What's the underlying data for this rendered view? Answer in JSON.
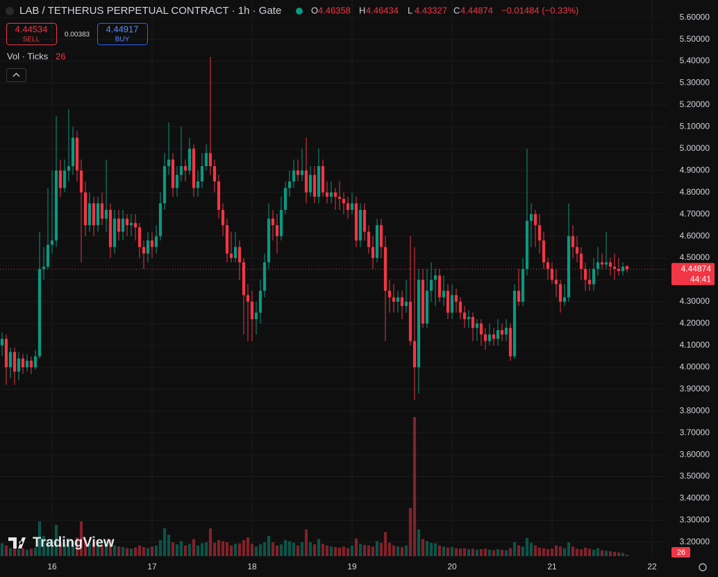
{
  "chart_data": {
    "type": "candlestick",
    "title": "LAB / TETHERUS PERPETUAL CONTRACT · 1h · Gate",
    "legend_letters": [
      "O",
      "H",
      "L",
      "C"
    ],
    "quote": [
      4.46358,
      4.46434,
      4.43327,
      4.44874
    ],
    "change_label": "−0.01484 (−0.33%)",
    "sell": {
      "price": 4.44534,
      "label": "SELL"
    },
    "spread": 0.00383,
    "buy": {
      "price": 4.44917,
      "label": "BUY"
    },
    "volume_title": "Vol · Ticks",
    "last_volume": 26,
    "last_price": 4.44874,
    "countdown": "44:41",
    "watermark": "TradingView",
    "up_color": "#089981",
    "down_color": "#f23645",
    "grid": true,
    "ylim": [
      3.136,
      5.68
    ],
    "xlim": [
      -0.5,
      159.5
    ],
    "yticks": [
      {
        "value": 3.2,
        "label": "3.20000"
      },
      {
        "value": 3.3,
        "label": "3.30000"
      },
      {
        "value": 3.4,
        "label": "3.40000"
      },
      {
        "value": 3.5,
        "label": "3.50000"
      },
      {
        "value": 3.6,
        "label": "3.60000"
      },
      {
        "value": 3.7,
        "label": "3.70000"
      },
      {
        "value": 3.8,
        "label": "3.80000"
      },
      {
        "value": 3.9,
        "label": "3.90000"
      },
      {
        "value": 4.0,
        "label": "4.00000"
      },
      {
        "value": 4.1,
        "label": "4.10000"
      },
      {
        "value": 4.2,
        "label": "4.20000"
      },
      {
        "value": 4.3,
        "label": "4.30000"
      },
      {
        "value": 4.4,
        "label": "4.40000"
      },
      {
        "value": 4.5,
        "label": "4.50000"
      },
      {
        "value": 4.6,
        "label": "4.60000"
      },
      {
        "value": 4.7,
        "label": "4.70000"
      },
      {
        "value": 4.8,
        "label": "4.80000"
      },
      {
        "value": 4.9,
        "label": "4.90000"
      },
      {
        "value": 5.0,
        "label": "5.00000"
      },
      {
        "value": 5.1,
        "label": "5.10000"
      },
      {
        "value": 5.2,
        "label": "5.20000"
      },
      {
        "value": 5.3,
        "label": "5.30000"
      },
      {
        "value": 5.4,
        "label": "5.40000"
      },
      {
        "value": 5.5,
        "label": "5.50000"
      },
      {
        "value": 5.6,
        "label": "5.60000"
      }
    ],
    "xticks": [
      {
        "value": 12,
        "label": "16"
      },
      {
        "value": 36,
        "label": "17"
      },
      {
        "value": 60,
        "label": "18"
      },
      {
        "value": 84,
        "label": "19"
      },
      {
        "value": 108,
        "label": "20"
      },
      {
        "value": 132,
        "label": "21"
      },
      {
        "value": 156,
        "label": "22"
      }
    ],
    "ohlc": [
      [
        4.1,
        4.16,
        4.05,
        4.13
      ],
      [
        4.13,
        4.15,
        3.92,
        4.0
      ],
      [
        4.0,
        4.09,
        3.95,
        4.07
      ],
      [
        4.07,
        4.09,
        3.92,
        3.98
      ],
      [
        3.98,
        4.07,
        3.94,
        4.04
      ],
      [
        4.04,
        4.06,
        3.97,
        4.0
      ],
      [
        4.0,
        4.06,
        3.98,
        4.03
      ],
      [
        4.03,
        4.05,
        3.97,
        4.0
      ],
      [
        4.0,
        4.08,
        3.99,
        4.05
      ],
      [
        4.05,
        4.62,
        4.04,
        4.45
      ],
      [
        4.45,
        4.55,
        4.4,
        4.46
      ],
      [
        4.46,
        4.82,
        4.45,
        4.56
      ],
      [
        4.56,
        4.9,
        4.52,
        4.58
      ],
      [
        4.58,
        5.15,
        4.55,
        4.9
      ],
      [
        4.9,
        4.95,
        4.78,
        4.82
      ],
      [
        4.82,
        4.95,
        4.8,
        4.9
      ],
      [
        4.9,
        5.18,
        4.85,
        4.92
      ],
      [
        4.92,
        5.1,
        4.88,
        5.05
      ],
      [
        5.05,
        5.08,
        4.85,
        4.9
      ],
      [
        4.9,
        4.95,
        4.48,
        4.8
      ],
      [
        4.8,
        4.85,
        4.6,
        4.65
      ],
      [
        4.65,
        4.8,
        4.62,
        4.75
      ],
      [
        4.75,
        4.78,
        4.6,
        4.65
      ],
      [
        4.65,
        4.78,
        4.62,
        4.75
      ],
      [
        4.75,
        4.8,
        4.65,
        4.68
      ],
      [
        4.68,
        4.95,
        4.62,
        4.72
      ],
      [
        4.72,
        4.75,
        4.5,
        4.55
      ],
      [
        4.55,
        4.72,
        4.52,
        4.68
      ],
      [
        4.68,
        4.72,
        4.58,
        4.62
      ],
      [
        4.62,
        4.72,
        4.58,
        4.68
      ],
      [
        4.68,
        4.7,
        4.6,
        4.65
      ],
      [
        4.65,
        4.7,
        4.6,
        4.66
      ],
      [
        4.66,
        4.7,
        4.58,
        4.64
      ],
      [
        4.64,
        4.66,
        4.5,
        4.55
      ],
      [
        4.55,
        4.58,
        4.45,
        4.52
      ],
      [
        4.52,
        4.62,
        4.48,
        4.58
      ],
      [
        4.58,
        4.62,
        4.5,
        4.55
      ],
      [
        4.55,
        4.65,
        4.52,
        4.6
      ],
      [
        4.6,
        4.8,
        4.58,
        4.75
      ],
      [
        4.75,
        4.98,
        4.72,
        4.92
      ],
      [
        4.92,
        5.12,
        4.88,
        4.95
      ],
      [
        4.95,
        4.98,
        4.78,
        4.82
      ],
      [
        4.82,
        4.92,
        4.78,
        4.88
      ],
      [
        4.88,
        5.1,
        4.85,
        4.92
      ],
      [
        4.92,
        4.95,
        4.85,
        4.9
      ],
      [
        4.9,
        5.05,
        4.88,
        5.0
      ],
      [
        5.0,
        5.02,
        4.78,
        4.82
      ],
      [
        4.82,
        4.9,
        4.78,
        4.85
      ],
      [
        4.85,
        4.98,
        4.82,
        4.92
      ],
      [
        4.92,
        5.02,
        4.9,
        4.98
      ],
      [
        4.98,
        5.42,
        4.88,
        4.92
      ],
      [
        4.92,
        4.95,
        4.8,
        4.85
      ],
      [
        4.85,
        4.88,
        4.68,
        4.72
      ],
      [
        4.72,
        4.75,
        4.6,
        4.65
      ],
      [
        4.65,
        4.68,
        4.48,
        4.52
      ],
      [
        4.52,
        4.62,
        4.48,
        4.5
      ],
      [
        4.5,
        4.62,
        4.48,
        4.55
      ],
      [
        4.55,
        4.58,
        4.4,
        4.48
      ],
      [
        4.48,
        4.5,
        4.15,
        4.33
      ],
      [
        4.33,
        4.38,
        4.12,
        4.3
      ],
      [
        4.3,
        4.35,
        4.12,
        4.22
      ],
      [
        4.22,
        4.3,
        4.15,
        4.25
      ],
      [
        4.25,
        4.4,
        4.2,
        4.35
      ],
      [
        4.35,
        4.52,
        4.32,
        4.48
      ],
      [
        4.48,
        4.75,
        4.45,
        4.68
      ],
      [
        4.68,
        4.72,
        4.58,
        4.65
      ],
      [
        4.65,
        4.7,
        4.52,
        4.6
      ],
      [
        4.6,
        4.78,
        4.58,
        4.72
      ],
      [
        4.72,
        4.85,
        4.7,
        4.82
      ],
      [
        4.82,
        4.9,
        4.78,
        4.85
      ],
      [
        4.85,
        4.95,
        4.82,
        4.9
      ],
      [
        4.9,
        4.95,
        4.85,
        4.88
      ],
      [
        4.88,
        5.0,
        4.85,
        4.9
      ],
      [
        4.9,
        5.05,
        4.75,
        4.8
      ],
      [
        4.8,
        4.92,
        4.78,
        4.88
      ],
      [
        4.88,
        4.92,
        4.75,
        4.78
      ],
      [
        4.78,
        5.0,
        4.75,
        4.92
      ],
      [
        4.92,
        4.95,
        4.78,
        4.8
      ],
      [
        4.8,
        4.85,
        4.75,
        4.78
      ],
      [
        4.78,
        4.85,
        4.75,
        4.8
      ],
      [
        4.8,
        4.82,
        4.72,
        4.78
      ],
      [
        4.78,
        4.85,
        4.72,
        4.77
      ],
      [
        4.77,
        4.8,
        4.7,
        4.75
      ],
      [
        4.75,
        4.78,
        4.68,
        4.72
      ],
      [
        4.72,
        4.8,
        4.7,
        4.75
      ],
      [
        4.75,
        4.78,
        4.55,
        4.58
      ],
      [
        4.58,
        4.75,
        4.55,
        4.72
      ],
      [
        4.72,
        4.75,
        4.58,
        4.62
      ],
      [
        4.62,
        4.65,
        4.52,
        4.55
      ],
      [
        4.55,
        4.6,
        4.45,
        4.5
      ],
      [
        4.5,
        4.68,
        4.48,
        4.65
      ],
      [
        4.65,
        4.68,
        4.5,
        4.55
      ],
      [
        4.55,
        4.6,
        4.12,
        4.35
      ],
      [
        4.35,
        4.4,
        4.25,
        4.32
      ],
      [
        4.32,
        4.38,
        4.25,
        4.3
      ],
      [
        4.3,
        4.35,
        4.25,
        4.32
      ],
      [
        4.32,
        4.35,
        4.22,
        4.28
      ],
      [
        4.28,
        4.4,
        4.25,
        4.3
      ],
      [
        4.3,
        4.6,
        4.1,
        4.12
      ],
      [
        4.12,
        4.55,
        3.85,
        4.0
      ],
      [
        4.0,
        4.45,
        3.88,
        4.4
      ],
      [
        4.4,
        4.45,
        4.18,
        4.2
      ],
      [
        4.2,
        4.45,
        4.18,
        4.35
      ],
      [
        4.35,
        4.48,
        4.3,
        4.4
      ],
      [
        4.4,
        4.45,
        4.28,
        4.42
      ],
      [
        4.42,
        4.45,
        4.3,
        4.32
      ],
      [
        4.32,
        4.42,
        4.28,
        4.35
      ],
      [
        4.35,
        4.38,
        4.22,
        4.25
      ],
      [
        4.25,
        4.38,
        4.22,
        4.33
      ],
      [
        4.33,
        4.36,
        4.25,
        4.3
      ],
      [
        4.3,
        4.32,
        4.22,
        4.25
      ],
      [
        4.25,
        4.28,
        4.18,
        4.22
      ],
      [
        4.22,
        4.26,
        4.18,
        4.23
      ],
      [
        4.23,
        4.25,
        4.12,
        4.18
      ],
      [
        4.18,
        4.22,
        4.12,
        4.2
      ],
      [
        4.2,
        4.22,
        4.1,
        4.15
      ],
      [
        4.15,
        4.18,
        4.08,
        4.12
      ],
      [
        4.12,
        4.2,
        4.1,
        4.15
      ],
      [
        4.15,
        4.18,
        4.1,
        4.13
      ],
      [
        4.13,
        4.22,
        4.1,
        4.17
      ],
      [
        4.17,
        4.2,
        4.12,
        4.15
      ],
      [
        4.15,
        4.22,
        4.12,
        4.18
      ],
      [
        4.18,
        4.2,
        4.03,
        4.05
      ],
      [
        4.05,
        4.38,
        4.04,
        4.35
      ],
      [
        4.35,
        4.45,
        4.28,
        4.3
      ],
      [
        4.3,
        4.5,
        4.28,
        4.45
      ],
      [
        4.45,
        5.0,
        4.42,
        4.67
      ],
      [
        4.67,
        4.75,
        4.55,
        4.7
      ],
      [
        4.7,
        4.72,
        4.55,
        4.65
      ],
      [
        4.65,
        4.7,
        4.52,
        4.58
      ],
      [
        4.58,
        4.62,
        4.45,
        4.48
      ],
      [
        4.48,
        4.5,
        4.4,
        4.45
      ],
      [
        4.45,
        4.48,
        4.38,
        4.4
      ],
      [
        4.4,
        4.45,
        4.32,
        4.38
      ],
      [
        4.38,
        4.4,
        4.25,
        4.3
      ],
      [
        4.3,
        4.38,
        4.28,
        4.32
      ],
      [
        4.32,
        4.75,
        4.3,
        4.6
      ],
      [
        4.6,
        4.65,
        4.5,
        4.55
      ],
      [
        4.55,
        4.6,
        4.48,
        4.52
      ],
      [
        4.52,
        4.55,
        4.4,
        4.45
      ],
      [
        4.45,
        4.48,
        4.35,
        4.4
      ],
      [
        4.4,
        4.45,
        4.35,
        4.38
      ],
      [
        4.38,
        4.5,
        4.35,
        4.45
      ],
      [
        4.45,
        4.55,
        4.42,
        4.48
      ],
      [
        4.48,
        4.52,
        4.45,
        4.47
      ],
      [
        4.47,
        4.62,
        4.45,
        4.48
      ],
      [
        4.48,
        4.5,
        4.42,
        4.46
      ],
      [
        4.46,
        4.52,
        4.4,
        4.45
      ],
      [
        4.45,
        4.5,
        4.42,
        4.44
      ],
      [
        4.44,
        4.48,
        4.42,
        4.46
      ],
      [
        4.46358,
        4.46434,
        4.43327,
        4.44874
      ]
    ],
    "volume": [
      240,
      200,
      150,
      180,
      130,
      150,
      120,
      140,
      160,
      650,
      380,
      300,
      320,
      585,
      250,
      230,
      330,
      280,
      350,
      650,
      300,
      230,
      250,
      220,
      210,
      280,
      300,
      200,
      180,
      170,
      150,
      140,
      160,
      200,
      170,
      150,
      180,
      200,
      300,
      520,
      400,
      260,
      220,
      280,
      200,
      230,
      320,
      200,
      240,
      260,
      520,
      250,
      300,
      280,
      260,
      200,
      230,
      240,
      300,
      350,
      230,
      180,
      220,
      260,
      380,
      260,
      200,
      220,
      300,
      280,
      250,
      200,
      260,
      500,
      260,
      220,
      320,
      230,
      200,
      180,
      170,
      160,
      180,
      150,
      200,
      330,
      230,
      210,
      200,
      180,
      280,
      250,
      450,
      250,
      200,
      180,
      170,
      200,
      900,
      2600,
      500,
      320,
      280,
      250,
      240,
      200,
      180,
      160,
      170,
      150,
      140,
      150,
      130,
      140,
      120,
      130,
      140,
      120,
      110,
      130,
      120,
      110,
      150,
      260,
      200,
      180,
      340,
      250,
      200,
      160,
      150,
      130,
      140,
      200,
      180,
      150,
      260,
      180,
      140,
      130,
      160,
      140,
      120,
      150,
      110,
      100,
      90,
      80,
      70,
      60,
      26
    ]
  }
}
